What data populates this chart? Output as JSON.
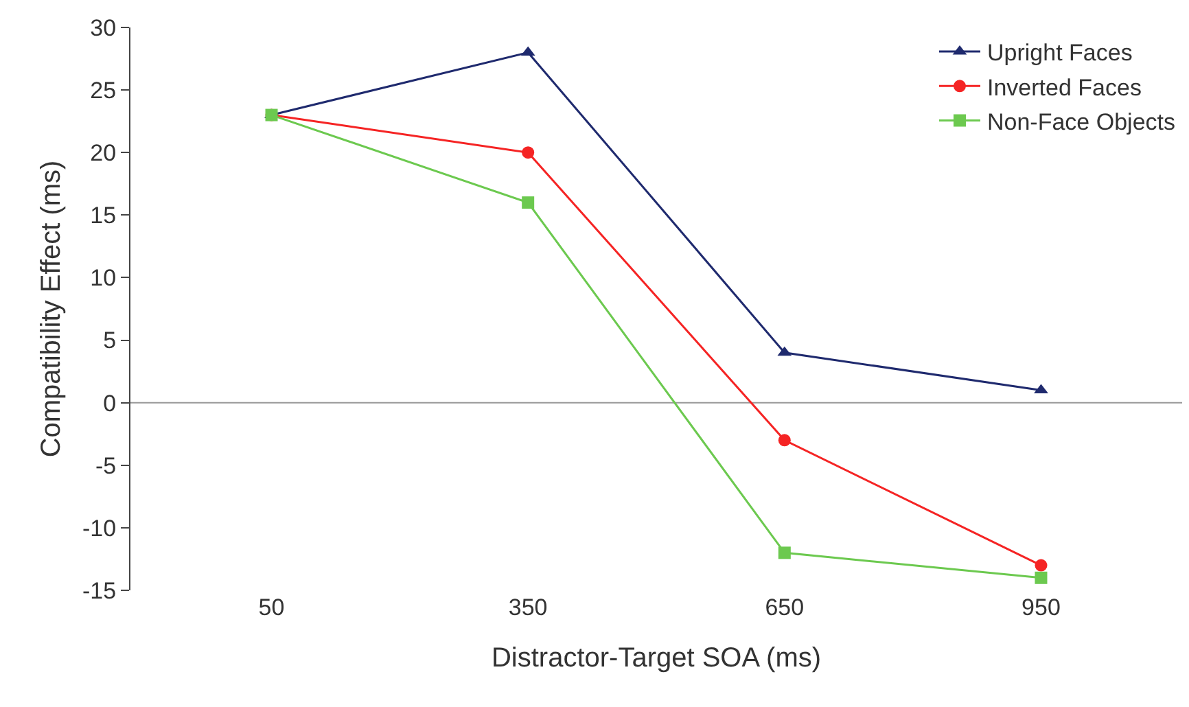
{
  "chart_data": {
    "type": "line",
    "xlabel": "Distractor-Target SOA (ms)",
    "ylabel": "Compatibility Effect (ms)",
    "categories": [
      "50",
      "350",
      "650",
      "950"
    ],
    "series": [
      {
        "name": "Upright Faces",
        "color": "#1f2a6e",
        "marker": "triangle",
        "values": [
          23,
          28,
          4,
          1
        ]
      },
      {
        "name": "Inverted Faces",
        "color": "#f52424",
        "marker": "circle",
        "values": [
          23,
          20,
          -3,
          -13
        ]
      },
      {
        "name": "Non-Face Objects",
        "color": "#6cc94f",
        "marker": "square",
        "values": [
          23,
          16,
          -12,
          -14
        ]
      }
    ],
    "ylim": [
      -15,
      30
    ],
    "yticks": [
      -15,
      -10,
      -5,
      0,
      5,
      10,
      15,
      20,
      25,
      30
    ],
    "grid": false,
    "ref_lines": [
      {
        "axis": "y",
        "value": 0,
        "color": "#999999"
      }
    ],
    "legend": "top right",
    "line_style": "solid"
  }
}
